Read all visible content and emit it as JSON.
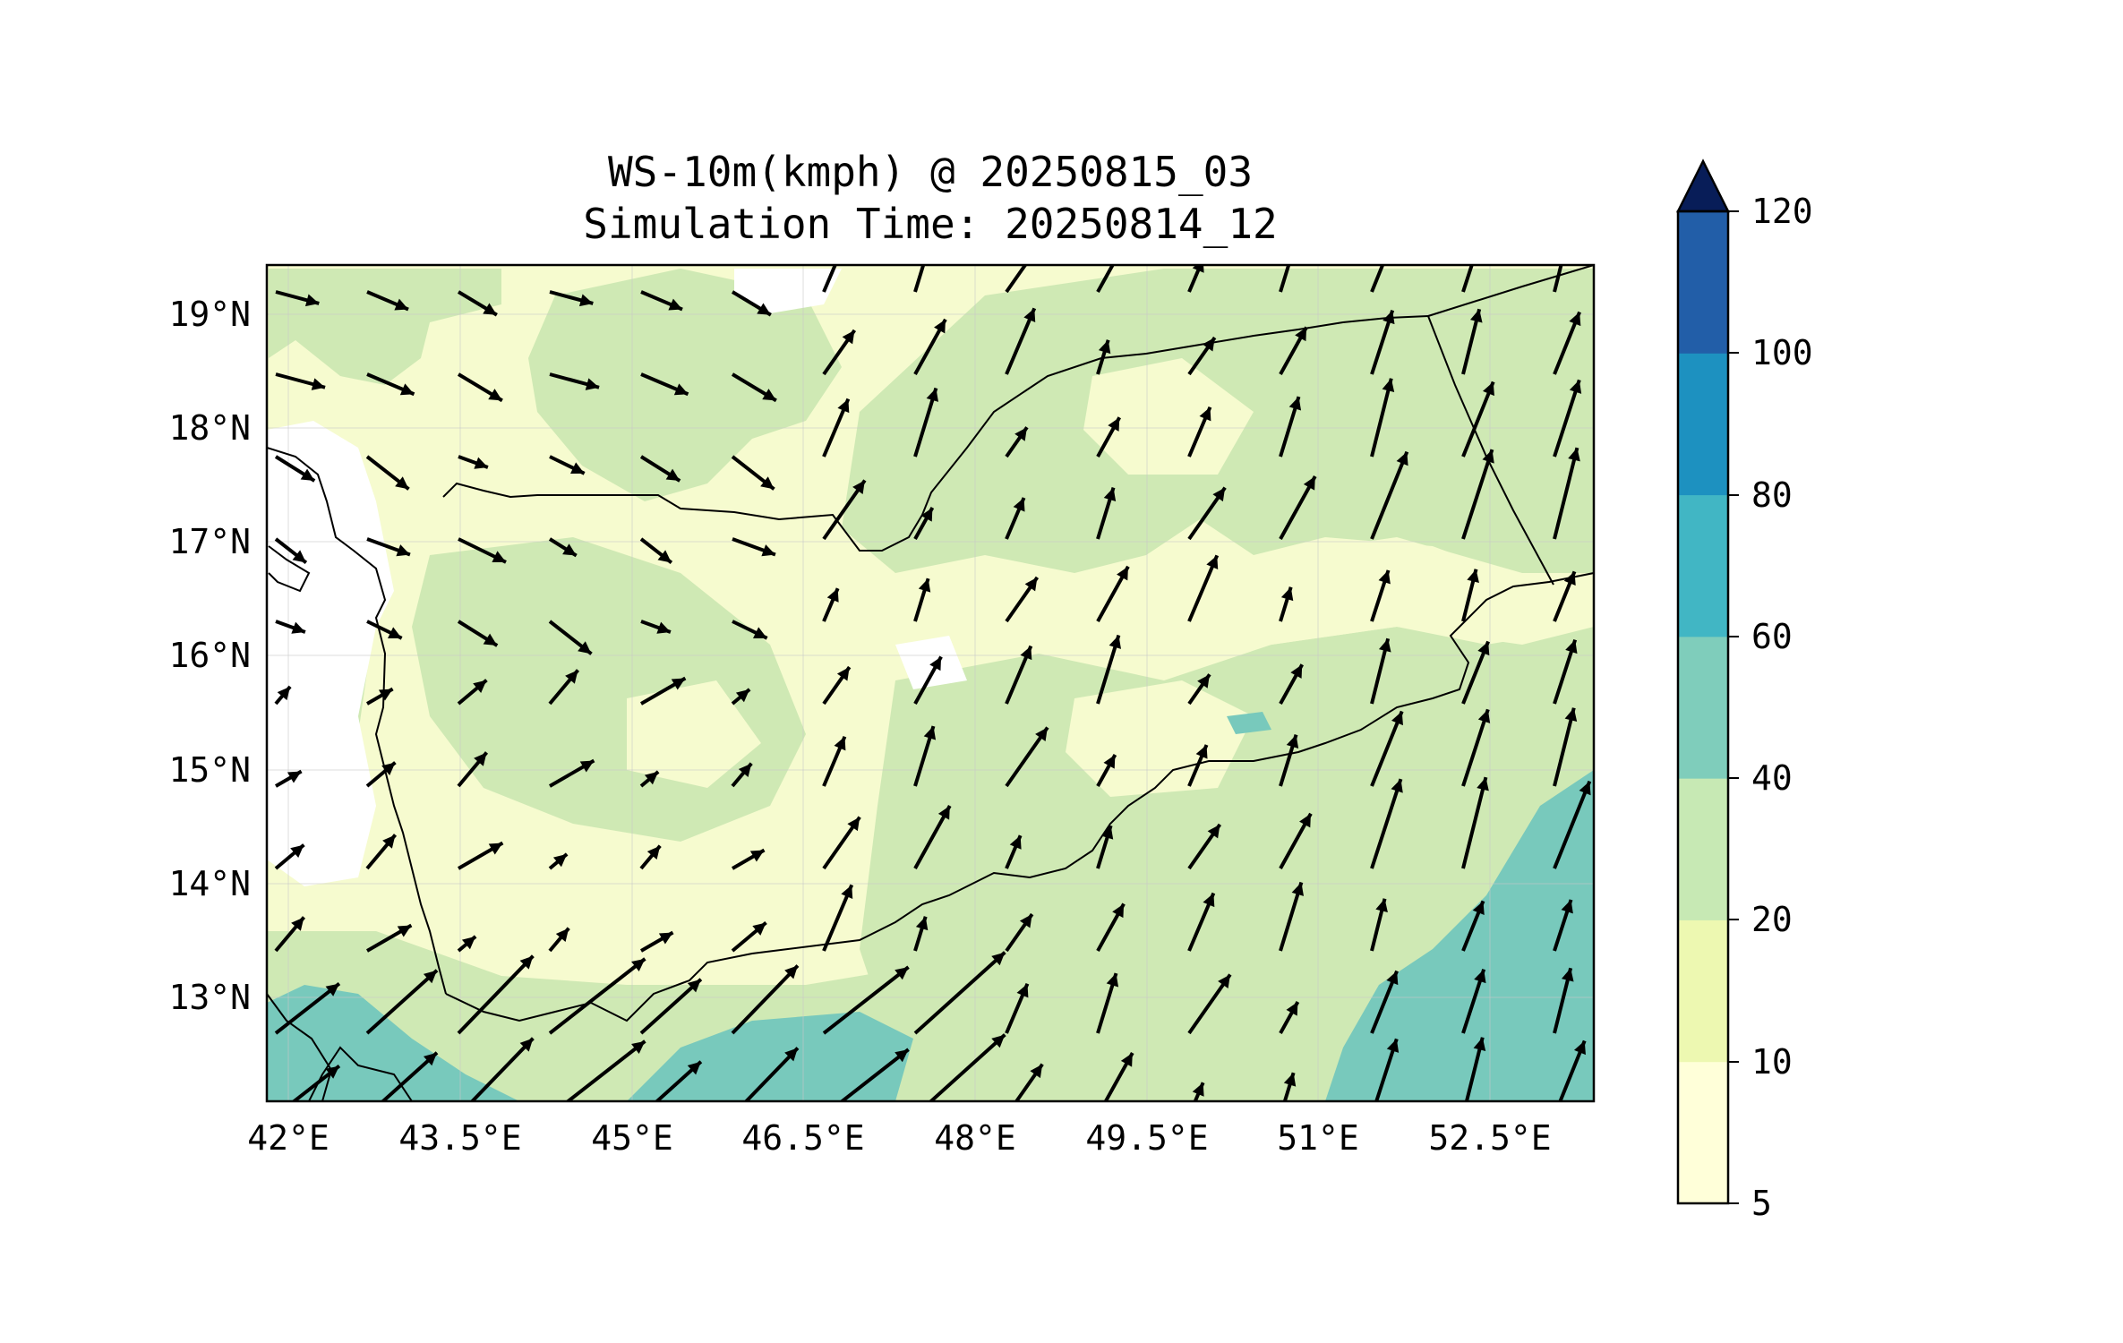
{
  "title": {
    "line1": "WS-10m(kmph) @ 20250815_03",
    "line2": "Simulation Time: 20250814_12"
  },
  "map": {
    "lon_ticks": [
      "42°E",
      "43.5°E",
      "45°E",
      "46.5°E",
      "48°E",
      "49.5°E",
      "51°E",
      "52.5°E"
    ],
    "lat_ticks": [
      "19°N",
      "18°N",
      "17°N",
      "16°N",
      "15°N",
      "14°N",
      "13°N"
    ],
    "extent": {
      "lon": [
        41.85,
        53.75
      ],
      "lat": [
        12.1,
        19.45
      ]
    }
  },
  "colorbar": {
    "levels": [
      "5",
      "10",
      "20",
      "40",
      "60",
      "80",
      "100",
      "120"
    ],
    "colors": [
      "#ffffd9",
      "#edf8b1",
      "#c7e9b4",
      "#7fcdbb",
      "#41b6c4",
      "#1d91c0",
      "#225ea8",
      "#081d58"
    ],
    "extend": "max"
  },
  "colors": {
    "calm": "#ffffff",
    "light": "#f6fbcf",
    "moderate": "#cfe9b4",
    "strong": "#78c9bc",
    "vector": "#000000",
    "border": "#000000"
  }
}
